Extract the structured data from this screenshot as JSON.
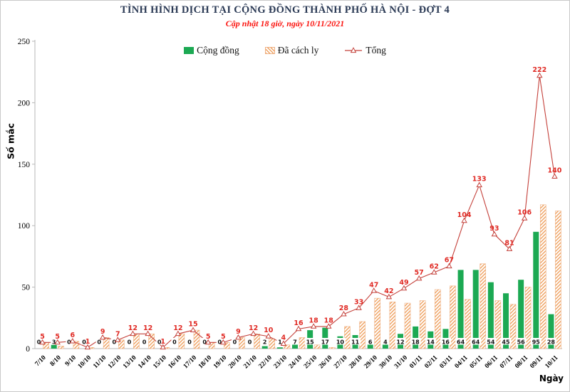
{
  "title": "TÌNH HÌNH DỊCH TẠI CỘNG ĐỒNG THÀNH PHỐ HÀ NỘI - ĐỢT 4",
  "subtitle": "Cập nhật 18 giờ, ngày 10/11/2021",
  "legend": [
    {
      "label": "Cộng đồng",
      "swatch": "green-solid-bar"
    },
    {
      "label": "Đã cách ly",
      "swatch": "orange-hatched-bar"
    },
    {
      "label": "Tổng",
      "swatch": "red-line-triangle-marker"
    }
  ],
  "axes": {
    "y_label": "Số mắc",
    "x_label": "Ngày",
    "y_ticks": [
      0,
      50,
      100,
      150,
      200,
      250
    ],
    "y_max": 250,
    "gridlines": false
  },
  "colors": {
    "community_green": "#1ca953",
    "quarantine_orange": "#efa160",
    "quarantine_border": "#eeb083",
    "total_line_red": "#c4403a",
    "red_label": "#e02a24",
    "black_label": "#111111",
    "axis_gray": "#b7b7b7",
    "title_navy": "#2b3a55",
    "subtitle_red": "#fb1510"
  },
  "chart_data": {
    "type": "bar",
    "note_line_series": "Tổng is drawn as a line with open triangle markers; bars are grouped pairs",
    "categories": [
      "7/10",
      "8/10",
      "9/10",
      "10/10",
      "11/10",
      "12/10",
      "13/10",
      "14/10",
      "15/10",
      "16/10",
      "17/10",
      "18/10",
      "19/10",
      "20/10",
      "21/10",
      "22/10",
      "23/10",
      "24/10",
      "25/10",
      "26/10",
      "27/10",
      "28/10",
      "29/10",
      "30/10",
      "31/10",
      "01/11",
      "02/11",
      "03/11",
      "04/11",
      "05/11",
      "06/11",
      "07/11",
      "08/11",
      "09/11",
      "10/11"
    ],
    "series": [
      {
        "name": "Cộng đồng",
        "type": "bar",
        "style": "solid",
        "values": [
          0,
          3,
          0,
          0,
          0,
          0,
          0,
          0,
          0,
          0,
          0,
          0,
          0,
          0,
          0,
          2,
          1,
          7,
          15,
          17,
          10,
          11,
          6,
          4,
          12,
          18,
          14,
          16,
          64,
          64,
          54,
          45,
          56,
          95,
          28
        ],
        "labels_shown": true
      },
      {
        "name": "Đã cách ly",
        "type": "bar",
        "style": "hatched",
        "values": [
          5,
          2,
          6,
          1,
          9,
          7,
          12,
          12,
          1,
          12,
          15,
          5,
          5,
          9,
          12,
          8,
          3,
          9,
          3,
          1,
          18,
          22,
          41,
          38,
          37,
          39,
          48,
          51,
          40,
          69,
          39,
          36,
          50,
          117,
          112
        ],
        "labels_shown": false
      },
      {
        "name": "Tổng",
        "type": "line",
        "marker": "open-triangle",
        "values": [
          5,
          5,
          6,
          1,
          9,
          7,
          12,
          12,
          1,
          12,
          15,
          5,
          5,
          9,
          12,
          10,
          4,
          16,
          18,
          18,
          28,
          33,
          47,
          42,
          49,
          57,
          62,
          67,
          104,
          133,
          93,
          81,
          106,
          222,
          140
        ],
        "labels_shown": true
      }
    ],
    "ylim": [
      0,
      250
    ],
    "legend_position": "top-center"
  }
}
